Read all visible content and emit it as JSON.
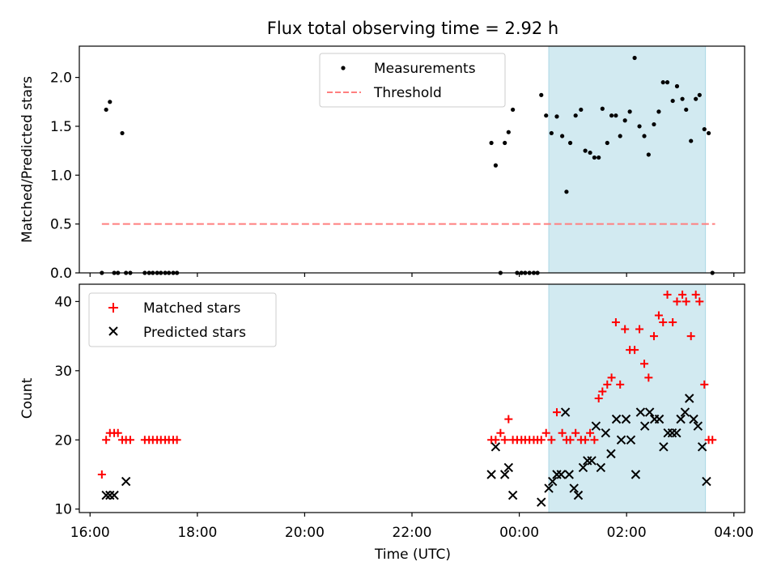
{
  "chart_data": {
    "title": "Flux total observing time = 2.92 h",
    "xlabel": "Time (UTC)",
    "x_unit": "hours UTC (values >= 24 are after midnight of the following day)",
    "xlim": [
      15.8,
      28.2
    ],
    "xticks": [
      16,
      18,
      20,
      22,
      24,
      26,
      28
    ],
    "xticklabels": [
      "16:00",
      "18:00",
      "20:00",
      "22:00",
      "00:00",
      "02:00",
      "04:00"
    ],
    "shaded_interval": {
      "x": [
        24.55,
        27.47
      ],
      "color": "#add8e6"
    },
    "panels": [
      {
        "type": "scatter",
        "ylabel": "Matched/Predicted stars",
        "ylim": [
          0,
          2.32
        ],
        "yticks": [
          0.0,
          0.5,
          1.0,
          1.5,
          2.0
        ],
        "yticklabels": [
          "0.0",
          "0.5",
          "1.0",
          "1.5",
          "2.0"
        ],
        "legend": {
          "position": "upper-center",
          "entries": [
            {
              "label": "Measurements",
              "marker": "dot",
              "color": "#000000"
            },
            {
              "label": "Threshold",
              "marker": "dashed-line",
              "color": "#ff7f7f"
            }
          ]
        },
        "threshold": {
          "y": 0.5,
          "x": [
            16.22,
            27.65
          ],
          "color": "#ff7f7f"
        },
        "series": [
          {
            "name": "Measurements",
            "marker": "dot",
            "color": "#000000",
            "x": [
              16.22,
              16.3,
              16.37,
              16.45,
              16.52,
              16.6,
              16.67,
              16.75,
              17.02,
              17.1,
              17.17,
              17.25,
              17.32,
              17.4,
              17.47,
              17.55,
              17.62,
              23.48,
              23.56,
              23.65,
              23.73,
              23.8,
              23.88,
              23.96,
              24.04,
              24.11,
              24.19,
              24.27,
              24.34,
              24.41,
              24.5,
              24.6,
              24.7,
              24.8,
              24.88,
              24.95,
              25.05,
              25.15,
              25.23,
              25.32,
              25.4,
              25.48,
              25.55,
              25.64,
              25.72,
              25.8,
              25.88,
              25.97,
              26.06,
              26.15,
              26.24,
              26.33,
              26.41,
              26.51,
              26.6,
              26.68,
              26.76,
              26.86,
              26.94,
              27.04,
              27.11,
              27.2,
              27.29,
              27.36,
              27.45,
              27.53,
              27.6
            ],
            "y": [
              0.0,
              1.67,
              1.75,
              0.0,
              0.0,
              1.43,
              0.0,
              0.0,
              0.0,
              0.0,
              0.0,
              0.0,
              0.0,
              0.0,
              0.0,
              0.0,
              0.0,
              1.33,
              1.1,
              0.0,
              1.33,
              1.44,
              1.67,
              0.0,
              0.0,
              0.0,
              0.0,
              0.0,
              0.0,
              1.82,
              1.61,
              1.43,
              1.6,
              1.4,
              0.83,
              1.33,
              1.61,
              1.67,
              1.25,
              1.23,
              1.18,
              1.18,
              1.68,
              1.33,
              1.61,
              1.61,
              1.4,
              1.56,
              1.65,
              2.2,
              1.5,
              1.4,
              1.21,
              1.52,
              1.65,
              1.95,
              1.95,
              1.76,
              1.91,
              1.78,
              1.67,
              1.35,
              1.78,
              1.82,
              1.47,
              1.43,
              0.0
            ]
          }
        ]
      },
      {
        "type": "scatter",
        "ylabel": "Count",
        "ylim": [
          9.5,
          42.5
        ],
        "yticks": [
          10,
          20,
          30,
          40
        ],
        "yticklabels": [
          "10",
          "20",
          "30",
          "40"
        ],
        "legend": {
          "position": "upper-left",
          "entries": [
            {
              "label": "Matched stars",
              "marker": "plus",
              "color": "#ff0000"
            },
            {
              "label": "Predicted stars",
              "marker": "x",
              "color": "#000000"
            }
          ]
        },
        "series": [
          {
            "name": "Matched stars",
            "marker": "plus",
            "color": "#ff0000",
            "x": [
              16.22,
              16.3,
              16.37,
              16.45,
              16.52,
              16.6,
              16.67,
              16.75,
              17.02,
              17.1,
              17.17,
              17.25,
              17.32,
              17.4,
              17.47,
              17.55,
              17.62,
              23.48,
              23.56,
              23.65,
              23.73,
              23.8,
              23.88,
              23.96,
              24.04,
              24.11,
              24.19,
              24.27,
              24.34,
              24.41,
              24.5,
              24.6,
              24.7,
              24.8,
              24.88,
              24.95,
              25.05,
              25.15,
              25.23,
              25.32,
              25.4,
              25.48,
              25.55,
              25.64,
              25.72,
              25.8,
              25.88,
              25.97,
              26.06,
              26.15,
              26.24,
              26.33,
              26.41,
              26.51,
              26.6,
              26.68,
              26.76,
              26.86,
              26.94,
              27.04,
              27.11,
              27.2,
              27.29,
              27.36,
              27.45,
              27.53,
              27.6
            ],
            "y": [
              15,
              20,
              21,
              21,
              21,
              20,
              20,
              20,
              20,
              20,
              20,
              20,
              20,
              20,
              20,
              20,
              20,
              20,
              20,
              21,
              20,
              23,
              20,
              20,
              20,
              20,
              20,
              20,
              20,
              20,
              21,
              20,
              24,
              21,
              20,
              20,
              21,
              20,
              20,
              21,
              20,
              26,
              27,
              28,
              29,
              37,
              28,
              36,
              33,
              33,
              36,
              31,
              29,
              35,
              38,
              37,
              41,
              37,
              40,
              41,
              40,
              35,
              41,
              40,
              28,
              20,
              20
            ]
          },
          {
            "name": "Predicted stars",
            "marker": "x",
            "color": "#000000",
            "x": [
              16.3,
              16.37,
              16.45,
              16.67,
              23.48,
              23.56,
              23.73,
              23.8,
              23.88,
              24.41,
              24.55,
              24.62,
              24.7,
              24.78,
              24.86,
              24.93,
              25.02,
              25.1,
              25.19,
              25.27,
              25.35,
              25.43,
              25.52,
              25.61,
              25.71,
              25.81,
              25.9,
              25.99,
              26.08,
              26.17,
              26.26,
              26.34,
              26.43,
              26.52,
              26.61,
              26.69,
              26.77,
              26.85,
              26.93,
              27.01,
              27.09,
              27.17,
              27.25,
              27.33,
              27.41,
              27.49
            ],
            "y": [
              12,
              12,
              12,
              14,
              15,
              19,
              15,
              16,
              12,
              11,
              13,
              14,
              15,
              15,
              24,
              15,
              13,
              12,
              16,
              17,
              17,
              22,
              16,
              21,
              18,
              23,
              20,
              23,
              20,
              15,
              24,
              22,
              24,
              23,
              23,
              19,
              21,
              21,
              21,
              23,
              24,
              26,
              23,
              22,
              19,
              14
            ]
          }
        ]
      }
    ]
  }
}
